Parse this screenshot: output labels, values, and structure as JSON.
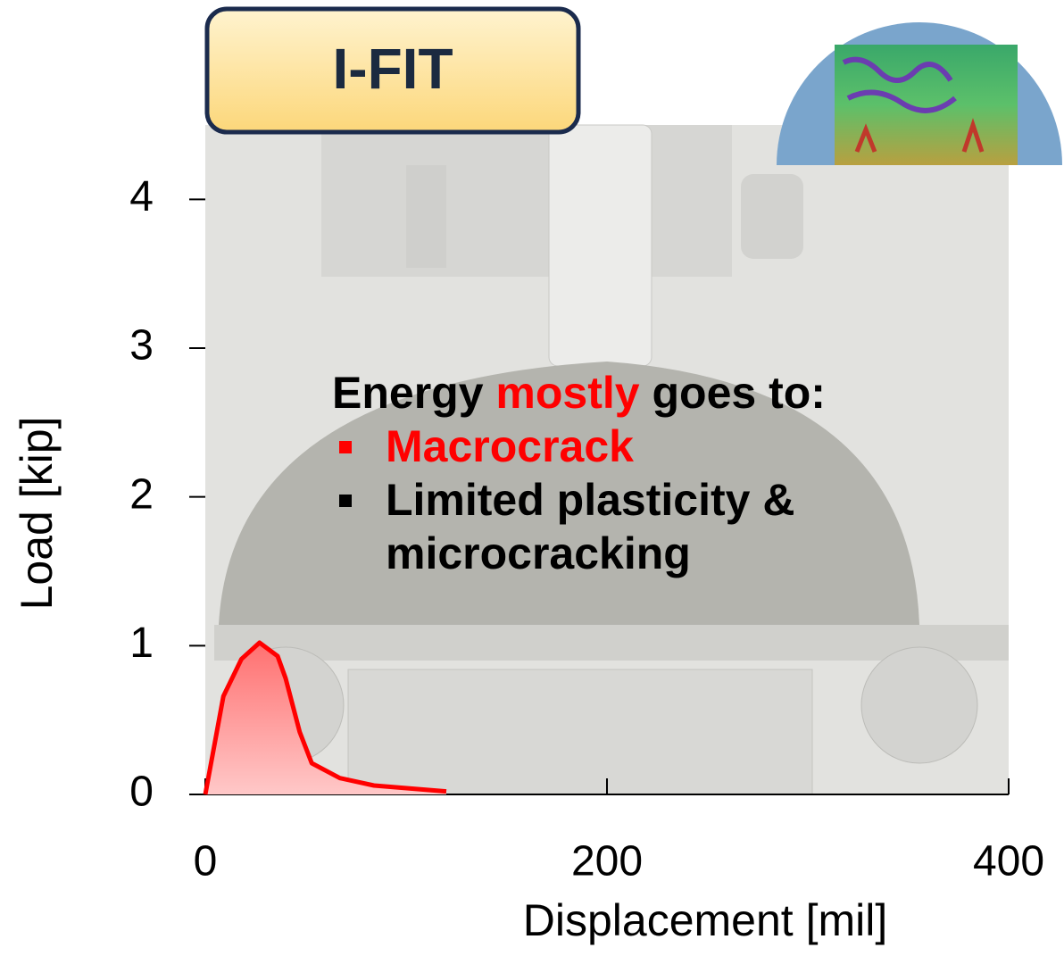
{
  "chart_data": {
    "type": "area",
    "title": "I-FIT",
    "x_label": "Displacement [mil]",
    "y_label": "Load [kip]",
    "x": [
      0,
      9,
      18,
      27,
      36,
      40,
      47,
      53,
      67,
      84,
      120
    ],
    "series": [
      {
        "color": "#ff0000",
        "values": [
          0,
          0.66,
          0.91,
          1.02,
          0.93,
          0.78,
          0.42,
          0.21,
          0.11,
          0.06,
          0.02
        ]
      }
    ],
    "xlim": [
      0,
      400
    ],
    "xticks": [
      0,
      200,
      400
    ],
    "ylim": [
      0,
      4.5
    ],
    "yticks": [
      0,
      1,
      2,
      3,
      4
    ],
    "annotation": {
      "heading": [
        "Energy",
        "mostly",
        "goes to:"
      ],
      "highlight_color": "#ff0000",
      "bullets": [
        {
          "text": "Macrocrack",
          "color": "#ff0000"
        },
        {
          "text": "Limited plasticity & microcracking",
          "color": "#000000"
        }
      ]
    }
  }
}
